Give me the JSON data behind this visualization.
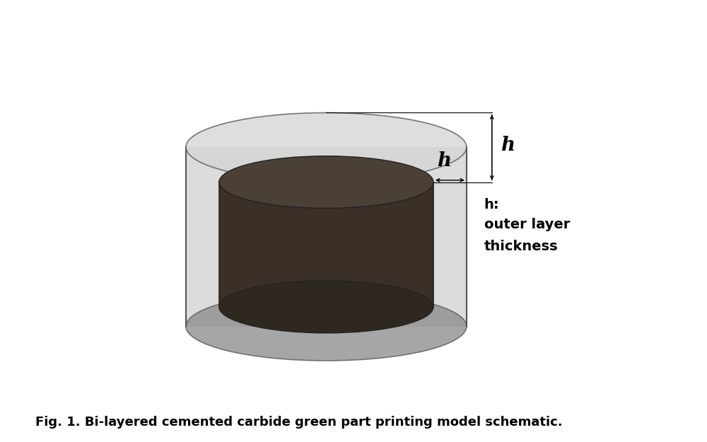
{
  "title": "Fig. 1. Bi-layered cemented carbide green part printing model schematic.",
  "title_fontsize": 13,
  "bg_color": "#ffffff",
  "outer_cyl_color": "#c0c0c0",
  "outer_cyl_alpha": 0.55,
  "outer_cyl_edge": "#555555",
  "outer_top_ellipse_color": "#d5d5d5",
  "outer_bottom_ellipse_color": "#888888",
  "inner_cyl_top_color": "#4a4035",
  "inner_cyl_side_color": "#3a3028",
  "inner_cyl_bottom_color": "#2e2820",
  "inner_cyl_edge": "#222222",
  "label_h_top": "h",
  "label_h_mid": "h",
  "label_desc_line1": "h:",
  "label_desc_line2": "outer layer",
  "label_desc_line3": "thickness"
}
